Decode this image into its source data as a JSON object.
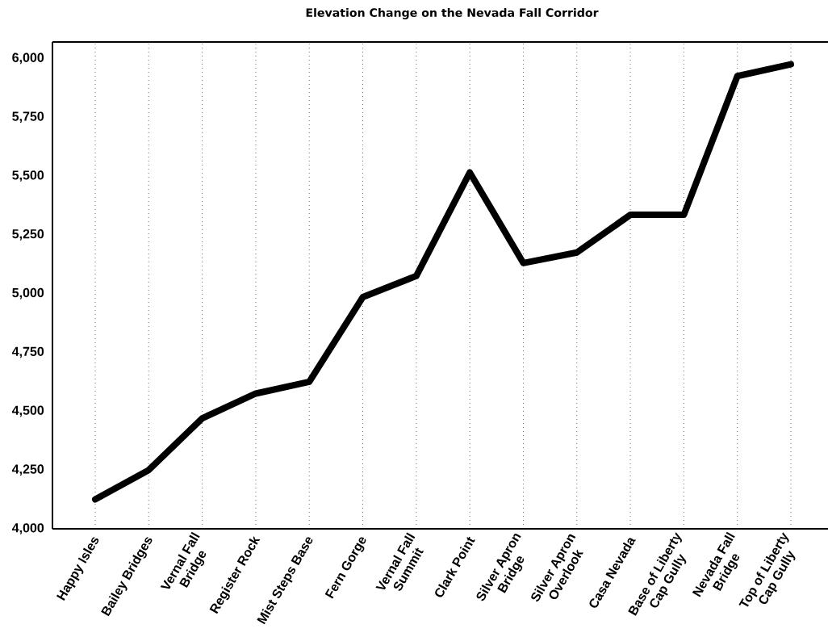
{
  "chart_data": {
    "type": "line",
    "title": "Elevation Change on the Nevada Fall Corridor",
    "categories": [
      "Happy Isles",
      "Bailey Bridges",
      "Vernal Fall Bridge",
      "Register Rock",
      "Mist Steps Base",
      "Fern Gorge",
      "Vernal Fall Summit",
      "Clark Point",
      "Silver Apron Bridge",
      "Silver Apron Overlook",
      "Casa Nevada",
      "Base of Liberty Cap Gully",
      "Nevada Fall Bridge",
      "Top of Liberty Cap Gully"
    ],
    "values": [
      4125,
      4250,
      4470,
      4575,
      4625,
      4985,
      5075,
      5515,
      5130,
      5175,
      5335,
      5335,
      5925,
      5975
    ],
    "color": "#000000",
    "ylim": [
      4000,
      6070
    ],
    "yticks": [
      {
        "value": 4000,
        "label": "4,000"
      },
      {
        "value": 4250,
        "label": "4,250"
      },
      {
        "value": 4500,
        "label": "4,500"
      },
      {
        "value": 4750,
        "label": "4,750"
      },
      {
        "value": 5000,
        "label": "5,000"
      },
      {
        "value": 5250,
        "label": "5,250"
      },
      {
        "value": 5500,
        "label": "5,500"
      },
      {
        "value": 5750,
        "label": "5,750"
      },
      {
        "value": 6000,
        "label": "6,000"
      }
    ],
    "grid": "x"
  }
}
